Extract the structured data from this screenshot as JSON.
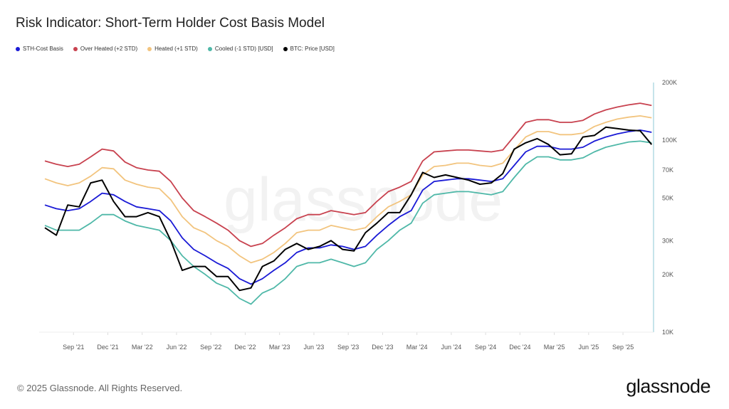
{
  "title": "Risk Indicator: Short-Term Holder Cost Basis Model",
  "footer": "© 2025 Glassnode. All Rights Reserved.",
  "logo_text": "glassnode",
  "watermark": "glassnode",
  "chart_data": {
    "type": "line",
    "title": "Risk Indicator: Short-Term Holder Cost Basis Model",
    "x_start": "2021-06",
    "x_end": "2025-11",
    "x_frequency": "monthly",
    "x_tick_labels": [
      "Sep '21",
      "Dec '21",
      "Mar '22",
      "Jun '22",
      "Sep '22",
      "Dec '22",
      "Mar '23",
      "Jun '23",
      "Sep '23",
      "Dec '23",
      "Mar '24",
      "Jun '24",
      "Sep '24",
      "Dec '24",
      "Mar '25",
      "Jun '25",
      "Sep '25"
    ],
    "y_scale": "log",
    "ylim": [
      10000,
      200000
    ],
    "y_ticks": [
      10000,
      20000,
      30000,
      50000,
      70000,
      100000,
      200000
    ],
    "y_tick_labels": [
      "10K",
      "20K",
      "30K",
      "50K",
      "70K",
      "100K",
      "200K"
    ],
    "y_axis_position": "right",
    "grid": false,
    "legend_position": "top-left",
    "series": [
      {
        "name": "STH-Cost Basis",
        "color": "#1a1ad6",
        "values": [
          46,
          44,
          43,
          44,
          48,
          53,
          52,
          48,
          45,
          44,
          43,
          38,
          31,
          27,
          25,
          23,
          21.5,
          19,
          17.8,
          19,
          21,
          23,
          26,
          27.5,
          27.5,
          28.5,
          28,
          27,
          28,
          32,
          36,
          40,
          43,
          55,
          61,
          62,
          63,
          63,
          62,
          61,
          63,
          74,
          87,
          93,
          93,
          90,
          90,
          92,
          99,
          104,
          108,
          111,
          113,
          110
        ],
        "unit": "thousand USD"
      },
      {
        "name": "Over Heated (+2 STD)",
        "color": "#c8424f",
        "values": [
          78,
          75,
          73,
          75,
          82,
          90,
          88,
          77,
          72,
          70,
          69,
          61,
          50,
          43,
          40,
          37,
          34,
          30,
          28,
          29,
          32,
          35,
          39,
          41,
          41,
          43,
          42,
          41,
          42,
          48,
          54,
          57,
          61,
          78,
          87,
          88,
          89,
          89,
          88,
          87,
          89,
          105,
          124,
          128,
          128,
          124,
          124,
          127,
          137,
          144,
          149,
          153,
          156,
          152
        ],
        "unit": "thousand USD"
      },
      {
        "name": "Heated (+1 STD)",
        "color": "#f2c47e",
        "values": [
          63,
          60,
          58,
          60,
          65,
          72,
          71,
          62,
          59,
          57,
          56,
          49,
          40,
          35,
          33,
          30,
          28,
          25,
          23,
          24,
          26,
          29,
          33,
          34,
          34,
          36,
          35,
          34,
          35,
          40,
          45,
          48,
          52,
          66,
          73,
          74,
          76,
          76,
          74,
          73,
          76,
          89,
          104,
          111,
          111,
          107,
          107,
          109,
          118,
          124,
          129,
          132,
          134,
          131
        ],
        "unit": "thousand USD"
      },
      {
        "name": "Cooled (-1 STD) [USD]",
        "color": "#4fb8a8",
        "values": [
          36,
          34,
          34,
          34,
          37,
          41,
          41,
          38,
          36,
          35,
          34,
          30,
          25,
          22,
          20,
          18,
          17,
          15,
          14,
          16,
          17,
          19,
          22,
          23,
          23,
          24,
          23,
          22,
          23,
          27,
          30,
          34,
          37,
          47,
          52,
          53,
          54,
          54,
          53,
          52,
          54,
          64,
          75,
          82,
          82,
          79,
          79,
          81,
          87,
          92,
          95,
          98,
          99,
          97
        ],
        "unit": "thousand USD"
      },
      {
        "name": "BTC: Price [USD]",
        "color": "#000000",
        "values": [
          35,
          32,
          46,
          45,
          60,
          62,
          48,
          40,
          40,
          42,
          40,
          30,
          21,
          22,
          22,
          19.5,
          19.5,
          16.5,
          17,
          22,
          23.5,
          27,
          29,
          27,
          28,
          30,
          27,
          26.5,
          33,
          37,
          42,
          42,
          52,
          68,
          64,
          66,
          64,
          62,
          59,
          60,
          67,
          90,
          97,
          102,
          95,
          84,
          85,
          104,
          106,
          117,
          115,
          113,
          112,
          95
        ],
        "unit": "thousand USD"
      }
    ]
  }
}
